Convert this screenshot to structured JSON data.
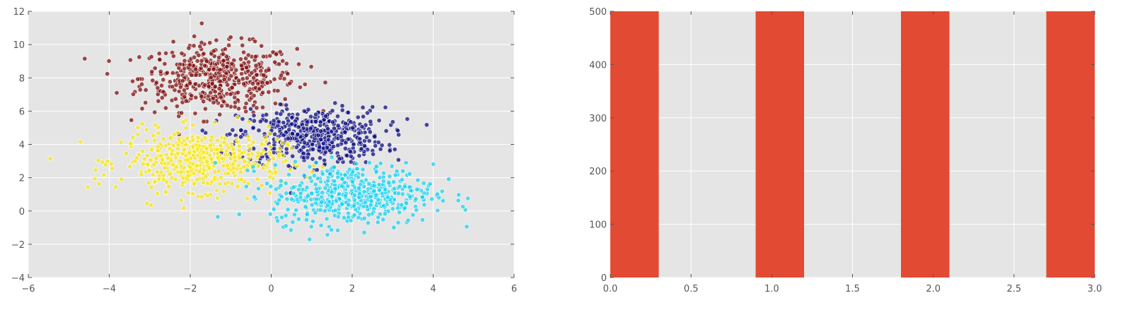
{
  "colors": {
    "axes_bg": "#e5e5e5",
    "grid": "#ffffff",
    "tick_label": "#555555",
    "bar": "#e24a33",
    "cluster_0": "#7f1111",
    "cluster_1": "#0f0f80",
    "cluster_2": "#f5e61e",
    "cluster_3": "#1ed2f0"
  },
  "chart_data": [
    {
      "type": "scatter",
      "title": "",
      "xlabel": "",
      "ylabel": "",
      "xlim": [
        -6,
        6
      ],
      "ylim": [
        -4,
        12
      ],
      "xticks": [
        -6,
        -4,
        -2,
        0,
        2,
        4,
        6
      ],
      "yticks": [
        -4,
        -2,
        0,
        2,
        4,
        6,
        8,
        10,
        12
      ],
      "grid": true,
      "legend": "none",
      "series": [
        {
          "color": "#7f1111",
          "center": [
            -1.3,
            8.0
          ],
          "spread": [
            0.95,
            1.0
          ],
          "count": 500
        },
        {
          "color": "#0f0f80",
          "center": [
            1.0,
            4.5
          ],
          "spread": [
            0.9,
            0.85
          ],
          "count": 500
        },
        {
          "color": "#f5e61e",
          "center": [
            -1.7,
            3.0
          ],
          "spread": [
            1.0,
            0.9
          ],
          "count": 500
        },
        {
          "color": "#1ed2f0",
          "center": [
            2.0,
            1.0
          ],
          "spread": [
            1.0,
            0.9
          ],
          "count": 500
        }
      ]
    },
    {
      "type": "bar",
      "title": "",
      "xlabel": "",
      "ylabel": "",
      "categories": [
        0,
        1,
        2,
        3
      ],
      "values": [
        500,
        500,
        500,
        500
      ],
      "bar_width": 0.3,
      "xlim": [
        0,
        3.0
      ],
      "ylim": [
        0,
        500
      ],
      "xticks": [
        "0.0",
        "0.5",
        "1.0",
        "1.5",
        "2.0",
        "2.5",
        "3.0"
      ],
      "yticks": [
        0,
        100,
        200,
        300,
        400,
        500
      ],
      "grid": true,
      "legend": "none"
    }
  ]
}
